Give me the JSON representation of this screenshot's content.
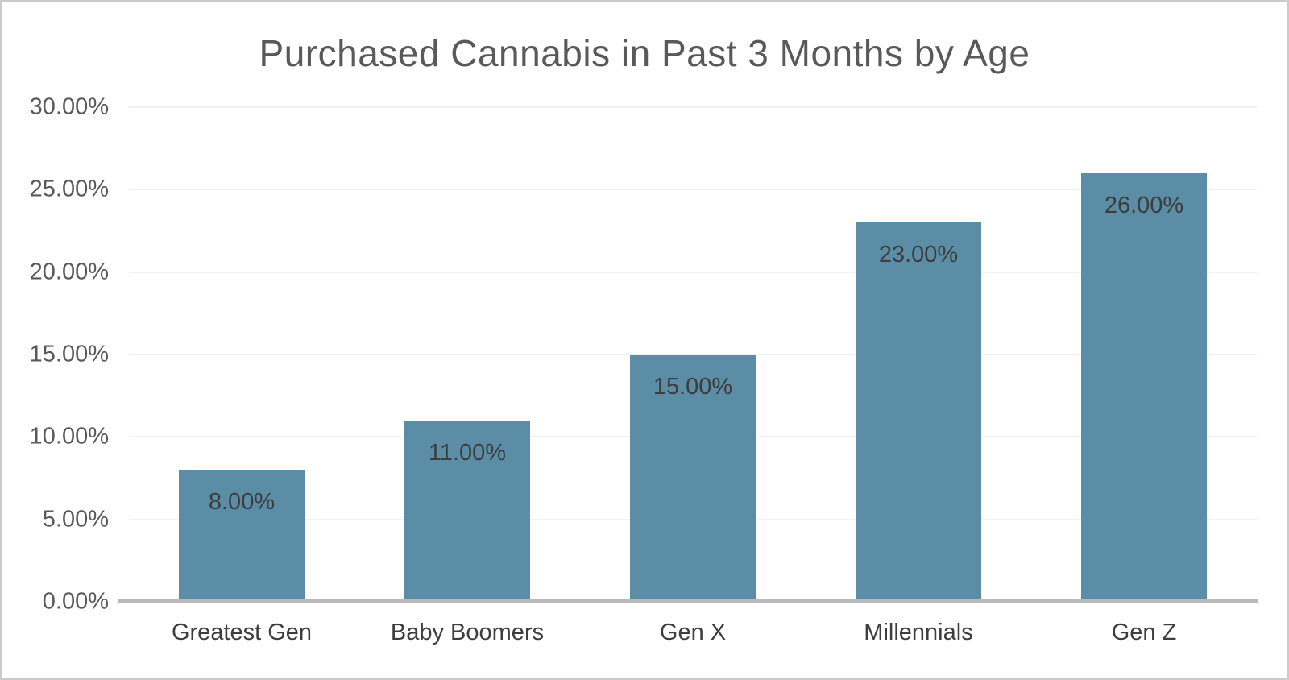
{
  "chart_data": {
    "type": "bar",
    "title": "Purchased Cannabis in Past 3 Months by Age",
    "categories": [
      "Greatest Gen",
      "Baby Boomers",
      "Gen X",
      "Millennials",
      "Gen Z"
    ],
    "values": [
      8,
      11,
      15,
      23,
      26
    ],
    "value_labels": [
      "8.00%",
      "11.00%",
      "15.00%",
      "23.00%",
      "26.00%"
    ],
    "xlabel": "",
    "ylabel": "",
    "ylim": [
      0,
      30
    ],
    "yticks": [
      {
        "value": 0,
        "label": "0.00%"
      },
      {
        "value": 5,
        "label": "5.00%"
      },
      {
        "value": 10,
        "label": "10.00%"
      },
      {
        "value": 15,
        "label": "15.00%"
      },
      {
        "value": 20,
        "label": "20.00%"
      },
      {
        "value": 25,
        "label": "25.00%"
      },
      {
        "value": 30,
        "label": "30.00%"
      }
    ],
    "grid": "horizontal",
    "legend": "none",
    "value_label_position": "inside-top",
    "colors": {
      "bar": "#5b8da7",
      "gridline": "#f1f1f1",
      "axis_line": "#b9b9b9",
      "title_text": "#595959",
      "tick_text": "#595959",
      "value_label_text": "#3d3d3d",
      "frame_border": "#cbcbcb",
      "background": "#ffffff"
    }
  }
}
